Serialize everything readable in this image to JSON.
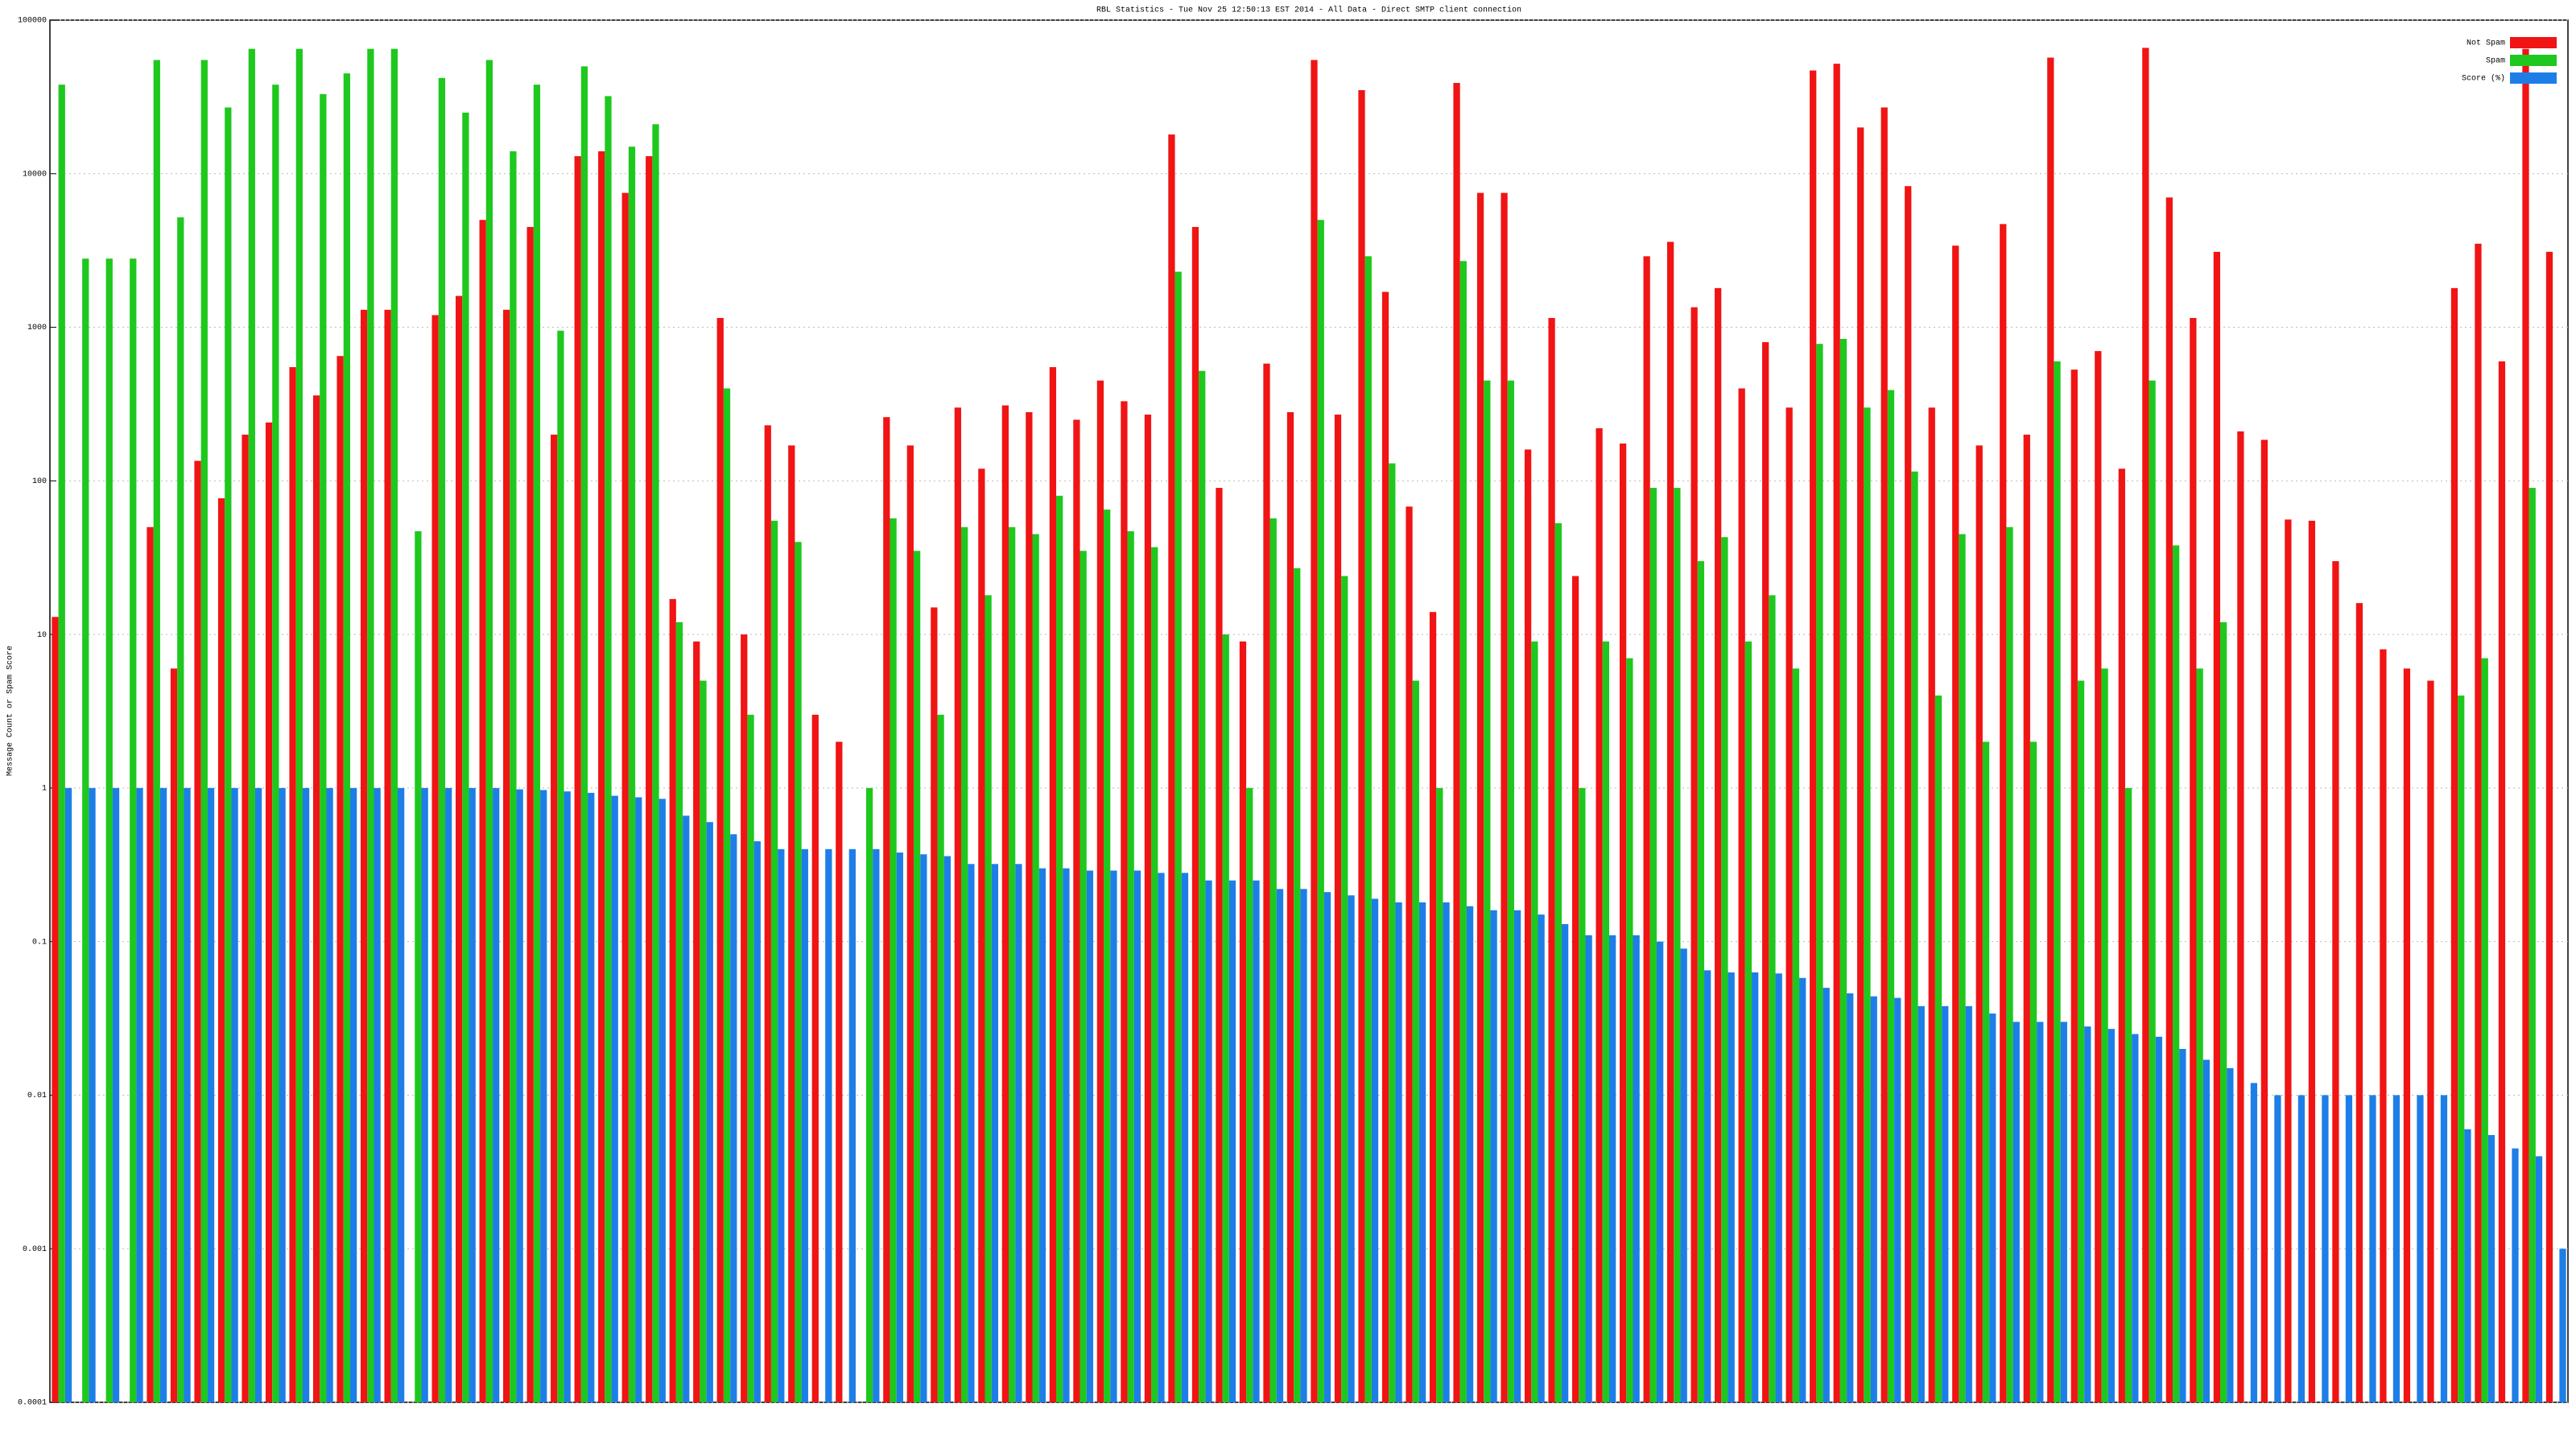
{
  "chart_data": {
    "type": "bar",
    "title": "RBL Statistics - Tue Nov 25 12:50:13 EST 2014 - All Data - Direct SMTP client connection",
    "y_label": "Message Count or Spam Score",
    "log_scale": true,
    "grid": true,
    "legend": "top-right",
    "ylim": [
      0.0001,
      100000
    ],
    "yticks": [
      0.0001,
      0.001,
      0.01,
      0.1,
      1,
      10,
      100,
      1000,
      10000,
      100000
    ],
    "categories": [
      null,
      null,
      null,
      null,
      null,
      null,
      null,
      null,
      null,
      null,
      null,
      null,
      null,
      null,
      null,
      null,
      null,
      null,
      null,
      null,
      null,
      null,
      null,
      null,
      null,
      null,
      null,
      null,
      null,
      null,
      null,
      null,
      null,
      null,
      null,
      null,
      null,
      null,
      null,
      null,
      null,
      null,
      null,
      null,
      null,
      null,
      null,
      null,
      null,
      null,
      null,
      null,
      null,
      null,
      null,
      null,
      null,
      null,
      null,
      null,
      null,
      null,
      null,
      null,
      null,
      null,
      null,
      null,
      null,
      null,
      null,
      null,
      null,
      null,
      null,
      null,
      null,
      null,
      null,
      null,
      null,
      null,
      null,
      null,
      null,
      null,
      null,
      null,
      null,
      null,
      null,
      null,
      null,
      null,
      null,
      null,
      null,
      null,
      null,
      null,
      null,
      null,
      null,
      null,
      null,
      null
    ],
    "series": [
      {
        "name": "Not Spam",
        "color": "#f01414",
        "values": [
          13,
          null,
          null,
          null,
          50,
          6,
          135,
          77,
          200,
          240,
          550,
          360,
          650,
          1300,
          1300,
          null,
          1200,
          1600,
          5000,
          1300,
          4500,
          200,
          13000,
          14000,
          7500,
          13000,
          17,
          9,
          1150,
          10,
          230,
          170,
          3,
          2,
          null,
          260,
          170,
          15,
          300,
          120,
          310,
          280,
          550,
          250,
          450,
          330,
          270,
          18000,
          4500,
          90,
          9,
          580,
          280,
          55000,
          270,
          35000,
          1700,
          68,
          14,
          39000,
          7500,
          7500,
          160,
          1150,
          24,
          220,
          175,
          2900,
          3600,
          1350,
          1800,
          400,
          800,
          300,
          47000,
          52000,
          20000,
          27000,
          8300,
          300,
          3400,
          170,
          4700,
          200,
          57000,
          530,
          700,
          120,
          66000,
          7000,
          1150,
          3100,
          210,
          185,
          56,
          55,
          30,
          16,
          8,
          6,
          5,
          1800,
          3500,
          600,
          65000,
          3100
        ]
      },
      {
        "name": "Spam",
        "color": "#1ec81e",
        "values": [
          38000,
          2800,
          2800,
          2800,
          55000,
          5200,
          55000,
          27000,
          65000,
          38000,
          65000,
          33000,
          45000,
          65000,
          65000,
          47,
          42000,
          25000,
          55000,
          14000,
          38000,
          950,
          50000,
          32000,
          15000,
          21000,
          12,
          5,
          400,
          3,
          55,
          40,
          null,
          null,
          1,
          57,
          35,
          3,
          50,
          18,
          50,
          45,
          80,
          35,
          65,
          47,
          37,
          2300,
          520,
          10,
          1,
          57,
          27,
          5000,
          24,
          2900,
          130,
          5,
          1,
          2700,
          450,
          450,
          9,
          53,
          1,
          9,
          7,
          90,
          90,
          30,
          43,
          9,
          18,
          6,
          780,
          840,
          300,
          390,
          115,
          4,
          45,
          2,
          50,
          2,
          600,
          5,
          6,
          1,
          450,
          38,
          6,
          12,
          null,
          null,
          null,
          null,
          null,
          null,
          null,
          null,
          null,
          4,
          7,
          null,
          90,
          null
        ]
      },
      {
        "name": "Score (%)",
        "color": "#1e7ee8",
        "values": [
          1,
          1,
          1,
          1,
          1,
          1,
          1,
          1,
          1,
          1,
          1,
          1,
          1,
          1,
          1,
          1,
          1,
          1,
          1,
          0.98,
          0.97,
          0.95,
          0.93,
          0.89,
          0.87,
          0.85,
          0.66,
          0.6,
          0.5,
          0.45,
          0.4,
          0.4,
          0.4,
          0.4,
          0.4,
          0.38,
          0.37,
          0.36,
          0.32,
          0.32,
          0.32,
          0.3,
          0.3,
          0.29,
          0.29,
          0.29,
          0.28,
          0.28,
          0.25,
          0.25,
          0.25,
          0.22,
          0.22,
          0.21,
          0.2,
          0.19,
          0.18,
          0.18,
          0.18,
          0.17,
          0.16,
          0.16,
          0.15,
          0.13,
          0.11,
          0.11,
          0.11,
          0.1,
          0.09,
          0.065,
          0.063,
          0.063,
          0.062,
          0.058,
          0.05,
          0.046,
          0.044,
          0.043,
          0.038,
          0.038,
          0.038,
          0.034,
          0.03,
          0.03,
          0.03,
          0.028,
          0.027,
          0.025,
          0.024,
          0.02,
          0.017,
          0.015,
          0.012,
          0.01,
          0.01,
          0.01,
          0.01,
          0.01,
          0.01,
          0.01,
          0.01,
          0.006,
          0.0055,
          0.0045,
          0.004,
          0.001
        ]
      }
    ]
  }
}
